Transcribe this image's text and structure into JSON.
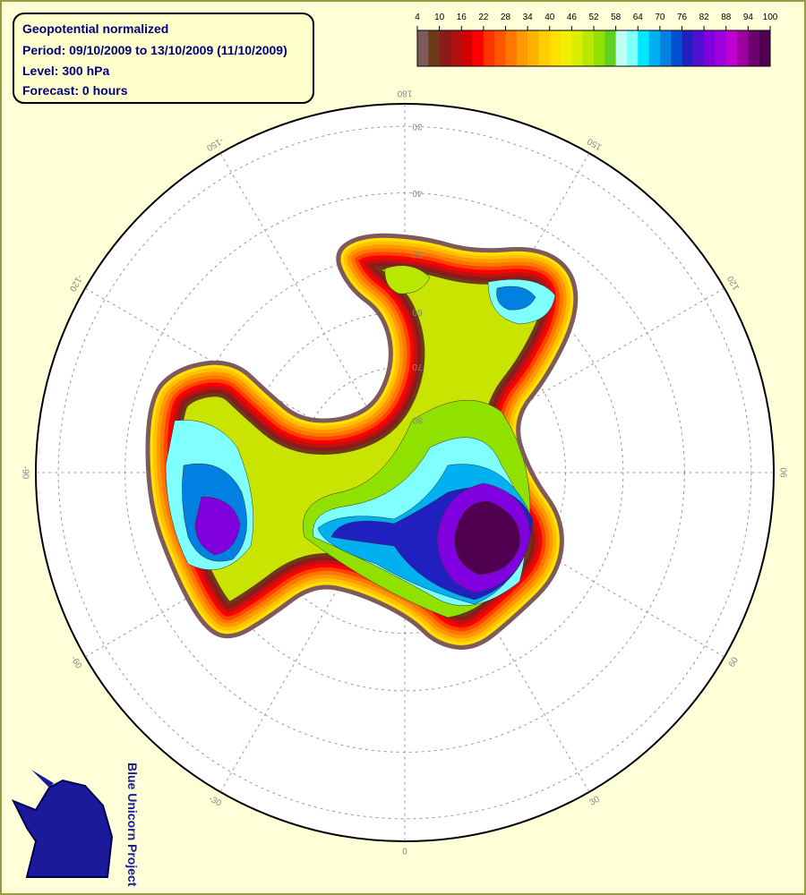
{
  "header": {
    "title": "Geopotential normalized",
    "period": "Period: 09/10/2009 to 13/10/2009 (11/10/2009)",
    "level": "Level: 300 hPa",
    "forecast": "Forecast: 0 hours"
  },
  "colorbar": {
    "range": [
      4,
      100
    ],
    "ticks": [
      4,
      10,
      16,
      22,
      28,
      34,
      40,
      46,
      52,
      58,
      64,
      70,
      76,
      82,
      88,
      94,
      100
    ],
    "colors": [
      "#7f5a5a",
      "#6b3a1a",
      "#8b1a1a",
      "#b01010",
      "#d40000",
      "#ff0000",
      "#ff3300",
      "#ff5500",
      "#ff7700",
      "#ff9900",
      "#ffb300",
      "#ffcc00",
      "#ffe000",
      "#f0f000",
      "#d8f000",
      "#b8e800",
      "#90e000",
      "#60d020",
      "#c0fff0",
      "#80ffff",
      "#00e8ff",
      "#00b0f0",
      "#0080e0",
      "#0050d0",
      "#2020c0",
      "#5010d0",
      "#8000e0",
      "#a000e0",
      "#c000d0",
      "#a000a0",
      "#700070",
      "#500050"
    ]
  },
  "graticule": {
    "longitudes": [
      0,
      30,
      60,
      90,
      120,
      150,
      180,
      -150,
      -120,
      -90,
      -60,
      -30
    ],
    "latitudes": [
      30,
      40,
      50,
      60,
      70,
      80
    ]
  },
  "logo": {
    "text": "Blue Unicorn Project"
  }
}
